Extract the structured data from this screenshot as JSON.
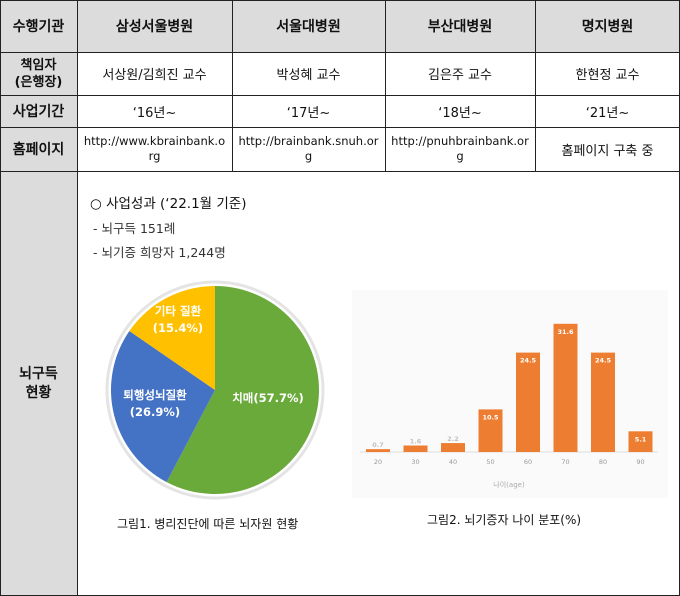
{
  "table": {
    "row_headers": {
      "agency": "수행기관",
      "manager": "책임자\n(은행장)",
      "period": "사업기간",
      "homepage": "홈페이지",
      "status": "뇌구득\n현황"
    },
    "columns": [
      {
        "name": "삼성서울병원",
        "manager": "서상원/김희진 교수",
        "period": "‘16년~",
        "homepage": "http://www.kbrainbank.org"
      },
      {
        "name": "서울대병원",
        "manager": "박성혜 교수",
        "period": "‘17년~",
        "homepage": "http://brainbank.snuh.org"
      },
      {
        "name": "부산대병원",
        "manager": "김은주 교수",
        "period": "‘18년~",
        "homepage": "http://pnuhbrainbank.org"
      },
      {
        "name": "명지병원",
        "manager": "한현정 교수",
        "period": "‘21년~",
        "homepage": "홈페이지 구축 중"
      }
    ]
  },
  "summary": {
    "title": "○ 사업성과 (‘22.1월 기준)",
    "lines": [
      "- 뇌구득 151례",
      "- 뇌기증 희망자 1,244명"
    ]
  },
  "figures": {
    "pie_caption": "그림1. 병리진단에 따른 뇌자원 현황",
    "bar_caption": "그림2. 뇌기증자 나이 분포(%)"
  },
  "chart_data": [
    {
      "type": "pie",
      "labels": [
        "치매",
        "퇴행성뇌질환",
        "기타 질환"
      ],
      "label_texts": [
        "치매(57.7%)",
        "퇴행성뇌질환\n(26.9%)",
        "기타 질환\n(15.4%)"
      ],
      "values": [
        57.7,
        26.9,
        15.4
      ],
      "colors": [
        "#6aaa3a",
        "#4472c4",
        "#ffc000"
      ]
    },
    {
      "type": "bar",
      "categories": [
        "20",
        "30",
        "40",
        "50",
        "60",
        "70",
        "80",
        "90"
      ],
      "values": [
        0.7,
        1.6,
        2.2,
        10.5,
        24.5,
        31.6,
        24.5,
        5.1
      ],
      "value_labels": [
        "0.7",
        "1.6",
        "2.2",
        "10.5",
        "24.5",
        "31.6",
        "24.5",
        "5.1"
      ],
      "xlabel": "나이(age)",
      "ylim": [
        0,
        35
      ],
      "color": "#ed7d31"
    }
  ]
}
